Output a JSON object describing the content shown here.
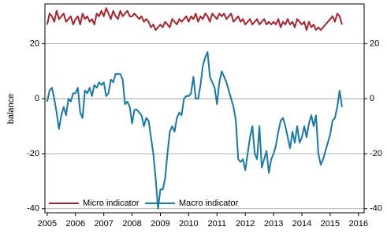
{
  "chart_data": {
    "type": "line",
    "y_label": "balance",
    "x": [
      2005,
      2005.083,
      2005.167,
      2005.25,
      2005.333,
      2005.417,
      2005.5,
      2005.583,
      2005.667,
      2005.75,
      2005.833,
      2005.917,
      2006,
      2006.083,
      2006.167,
      2006.25,
      2006.333,
      2006.417,
      2006.5,
      2006.583,
      2006.667,
      2006.75,
      2006.833,
      2006.917,
      2007,
      2007.083,
      2007.167,
      2007.25,
      2007.333,
      2007.417,
      2007.5,
      2007.583,
      2007.667,
      2007.75,
      2007.833,
      2007.917,
      2008,
      2008.083,
      2008.167,
      2008.25,
      2008.333,
      2008.417,
      2008.5,
      2008.583,
      2008.667,
      2008.75,
      2008.833,
      2008.917,
      2009,
      2009.083,
      2009.167,
      2009.25,
      2009.333,
      2009.417,
      2009.5,
      2009.583,
      2009.667,
      2009.75,
      2009.833,
      2009.917,
      2010,
      2010.083,
      2010.167,
      2010.25,
      2010.333,
      2010.417,
      2010.5,
      2010.583,
      2010.667,
      2010.75,
      2010.833,
      2010.917,
      2011,
      2011.083,
      2011.167,
      2011.25,
      2011.333,
      2011.417,
      2011.5,
      2011.583,
      2011.667,
      2011.75,
      2011.833,
      2011.917,
      2012,
      2012.083,
      2012.167,
      2012.25,
      2012.333,
      2012.417,
      2012.5,
      2012.583,
      2012.667,
      2012.75,
      2012.833,
      2012.917,
      2013,
      2013.083,
      2013.167,
      2013.25,
      2013.333,
      2013.417,
      2013.5,
      2013.583,
      2013.667,
      2013.75,
      2013.833,
      2013.917,
      2014,
      2014.083,
      2014.167,
      2014.25,
      2014.333,
      2014.417,
      2014.5,
      2014.583,
      2014.667,
      2014.75,
      2014.833,
      2014.917,
      2015,
      2015.083,
      2015.167,
      2015.25,
      2015.333,
      2015.417
    ],
    "series": [
      {
        "name": "Micro indicator",
        "color": "#a3262f",
        "values": [
          27,
          31,
          30,
          28,
          32,
          29,
          30,
          31,
          28,
          29,
          30,
          27,
          29,
          30,
          27,
          31,
          29,
          30,
          28,
          29,
          27,
          31,
          30,
          32,
          30,
          33,
          31,
          29,
          32,
          30,
          29,
          32,
          30,
          31,
          32,
          30,
          30,
          31,
          30,
          29,
          30,
          28,
          29,
          28,
          26,
          27,
          25,
          26,
          27,
          26,
          28,
          27,
          26,
          29,
          28,
          27,
          29,
          28,
          29,
          30,
          28,
          30,
          29,
          31,
          28,
          30,
          29,
          31,
          30,
          28,
          31,
          30,
          29,
          31,
          30,
          31,
          29,
          30,
          31,
          28,
          29,
          30,
          28,
          29,
          27,
          28,
          29,
          27,
          28,
          29,
          27,
          28,
          29,
          27,
          28,
          27,
          28,
          27,
          29,
          26,
          28,
          27,
          29,
          27,
          28,
          26,
          29,
          28,
          27,
          28,
          25,
          28,
          26,
          27,
          25,
          26,
          25,
          26,
          27,
          28,
          29,
          30,
          28,
          31,
          30,
          27
        ]
      },
      {
        "name": "Macro indicator",
        "color": "#1878a8",
        "values": [
          -1,
          3,
          4,
          0,
          -5,
          -11,
          -6,
          -3,
          -6,
          0,
          -1,
          2,
          2,
          4,
          -5,
          -7,
          3,
          2,
          4,
          1,
          5,
          4,
          6,
          5,
          6,
          1,
          2,
          7,
          6,
          9,
          9,
          9,
          7,
          -2,
          -1,
          -3,
          -9,
          -4,
          -4,
          -5,
          -6,
          -10,
          -7,
          -8,
          -14,
          -20,
          -29,
          -40,
          -33,
          -33,
          -29,
          -20,
          -12,
          -10,
          -12,
          -7,
          -5,
          -6,
          0,
          1,
          1,
          2,
          8,
          0,
          0,
          5,
          12,
          15,
          17,
          8,
          6,
          4,
          -2,
          6,
          10,
          8,
          6,
          3,
          0,
          -3,
          -8,
          -22,
          -23,
          -22,
          -26,
          -20,
          -14,
          -10,
          -20,
          -22,
          -10,
          -25,
          -22,
          -19,
          -27,
          -22,
          -20,
          -17,
          -12,
          -8,
          -7,
          -10,
          -14,
          -18,
          -12,
          -16,
          -10,
          -16,
          -14,
          -10,
          -14,
          -9,
          -6,
          -10,
          -6,
          -20,
          -24,
          -22,
          -19,
          -16,
          -13,
          -8,
          -7,
          -3,
          3,
          -3
        ]
      }
    ],
    "xlim": [
      2004.92,
      2016.2
    ],
    "xticks": [
      2005,
      2006,
      2007,
      2008,
      2009,
      2010,
      2011,
      2012,
      2013,
      2014,
      2015,
      2016
    ],
    "ylim": [
      -41.5,
      34.5
    ],
    "yticks": [
      -40,
      -20,
      0,
      20
    ],
    "grid": true,
    "legend": "lower left"
  }
}
